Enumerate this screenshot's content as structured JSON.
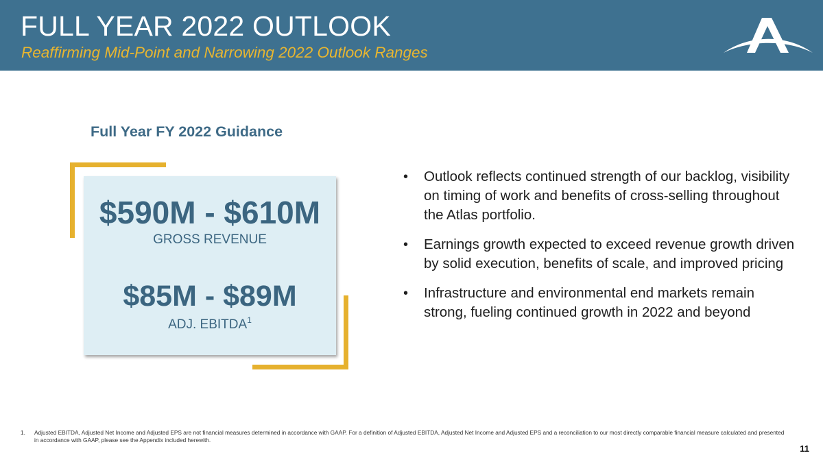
{
  "header": {
    "title": "FULL YEAR 2022 OUTLOOK",
    "subtitle": "Reaffirming Mid-Point and Narrowing 2022 Outlook Ranges",
    "logo_icon": "atlas-logo-icon"
  },
  "guidance": {
    "heading": "Full Year FY 2022 Guidance",
    "revenue_value": "$590M - $610M",
    "revenue_label": "GROSS REVENUE",
    "ebitda_value": "$85M - $89M",
    "ebitda_label": "ADJ. EBITDA",
    "ebitda_footnote_ref": "1"
  },
  "bullets": [
    "Outlook reflects continued strength of our backlog, visibility on timing of work and benefits of cross-selling throughout the Atlas portfolio.",
    "Earnings growth expected to exceed revenue growth driven by solid execution, benefits of scale, and improved pricing",
    "Infrastructure and environmental end markets remain strong, fueling continued growth in 2022 and beyond"
  ],
  "bullet_symbol": "•",
  "footnote": {
    "number": "1.",
    "text": "Adjusted EBITDA, Adjusted Net Income and Adjusted EPS are not financial measures determined in accordance with GAAP. For a definition of Adjusted EBITDA, Adjusted Net Income and Adjusted EPS and a reconciliation to our most directly comparable financial measure calculated and presented in accordance with GAAP, please see the Appendix included herewith."
  },
  "page_number": "11",
  "colors": {
    "header_bg": "#3e7190",
    "accent_gold": "#e6b12e",
    "card_bg": "#deeef4",
    "value_text": "#3b6580"
  }
}
